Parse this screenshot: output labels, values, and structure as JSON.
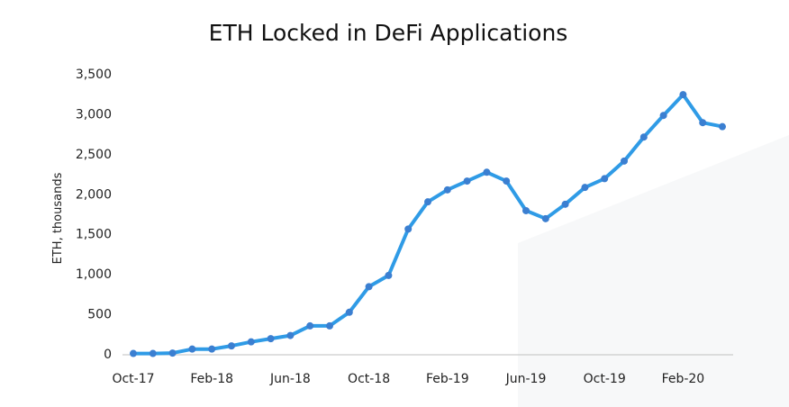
{
  "chart_data": {
    "type": "line",
    "title": "ETH Locked in DeFi Applications",
    "xlabel": "",
    "ylabel": "ETH, thousands",
    "ylim": [
      0,
      3500
    ],
    "y_ticks": [
      0,
      500,
      1000,
      1500,
      2000,
      2500,
      3000,
      3500
    ],
    "y_tick_labels": [
      "0",
      "500",
      "1,000",
      "1,500",
      "2,000",
      "2,500",
      "3,000",
      "3,500"
    ],
    "x": [
      "Oct-17",
      "Nov-17",
      "Dec-17",
      "Jan-18",
      "Feb-18",
      "Mar-18",
      "Apr-18",
      "May-18",
      "Jun-18",
      "Jul-18",
      "Aug-18",
      "Sep-18",
      "Oct-18",
      "Nov-18",
      "Dec-18",
      "Jan-19",
      "Feb-19",
      "Mar-19",
      "Apr-19",
      "May-19",
      "Jun-19",
      "Jul-19",
      "Aug-19",
      "Sep-19",
      "Oct-19",
      "Nov-19",
      "Dec-19",
      "Jan-20",
      "Feb-20",
      "Mar-20",
      "Apr-20"
    ],
    "x_tick_labels": [
      "Oct-17",
      "Feb-18",
      "Jun-18",
      "Oct-18",
      "Feb-19",
      "Jun-19",
      "Oct-19",
      "Feb-20"
    ],
    "series": [
      {
        "name": "",
        "values": [
          5,
          5,
          10,
          60,
          60,
          100,
          150,
          190,
          230,
          350,
          350,
          520,
          840,
          980,
          1560,
          1900,
          2050,
          2160,
          2270,
          2160,
          1790,
          1690,
          1870,
          2080,
          2190,
          2410,
          2710,
          2980,
          3240,
          2890,
          2840
        ]
      }
    ],
    "grid": false,
    "legend": "none",
    "line_color": "#2f9be6",
    "marker_color": "#3b7fd1"
  }
}
